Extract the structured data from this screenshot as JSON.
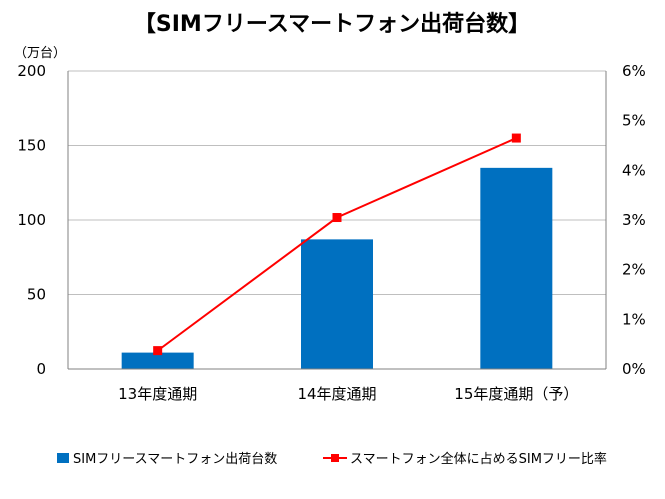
{
  "chart_data": {
    "type": "bar",
    "title": "【SIMフリースマートフォン出荷台数】",
    "y_unit": "（万台）",
    "categories": [
      "13年度通期",
      "14年度通期",
      "15年度通期（予）"
    ],
    "series": [
      {
        "name": "SIMフリースマートフォン出荷台数",
        "type": "bar",
        "axis": "left",
        "color": "#0070C0",
        "values": [
          11,
          87,
          135
        ]
      },
      {
        "name": "スマートフォン全体に占めるSIMフリー比率",
        "type": "line",
        "axis": "right",
        "color": "#FF0000",
        "values": [
          0.37,
          3.05,
          4.65
        ]
      }
    ],
    "y_left": {
      "min": 0,
      "max": 200,
      "ticks": [
        "0",
        "50",
        "100",
        "150",
        "200"
      ]
    },
    "y_right": {
      "min": 0,
      "max": 6,
      "ticks": [
        "0%",
        "1%",
        "2%",
        "3%",
        "4%",
        "5%",
        "6%"
      ]
    },
    "grid": true,
    "legend_position": "bottom"
  }
}
